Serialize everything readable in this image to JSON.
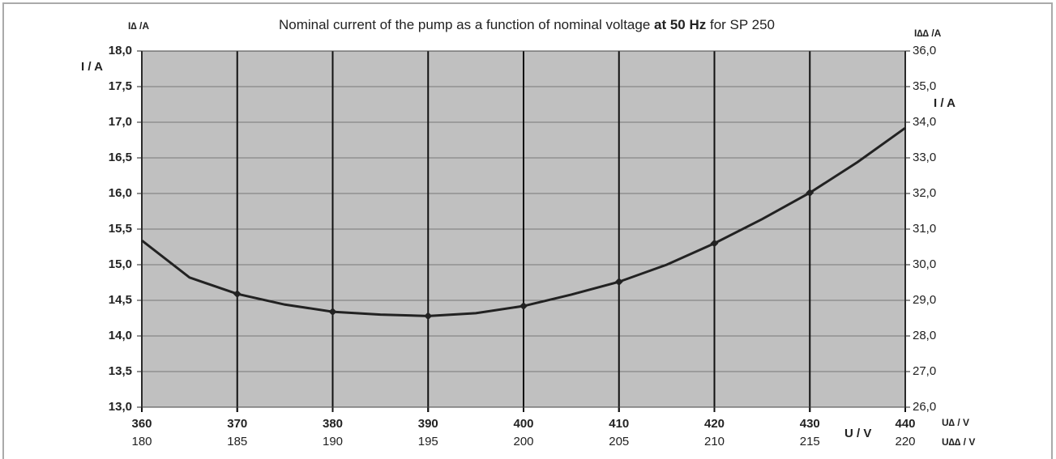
{
  "chart_data": {
    "type": "line",
    "title_parts": [
      "Nominal current of the pump as a function of nominal voltage ",
      "at 50 Hz",
      " for SP 250"
    ],
    "y_label_top": "I∆ /A",
    "y_label": "I / A",
    "y2_label_top": "I∆∆ /A",
    "y2_label": "I / A",
    "x_label": "U / V",
    "x_label_right": "U∆ / V",
    "x2_label_right": "U∆∆ / V",
    "x": [
      360,
      365,
      370,
      375,
      380,
      385,
      390,
      395,
      400,
      405,
      410,
      415,
      420,
      425,
      430,
      435,
      440
    ],
    "series": [
      {
        "color": "#222222",
        "values": [
          15.34,
          14.82,
          14.59,
          14.44,
          14.34,
          14.3,
          14.28,
          14.32,
          14.42,
          14.58,
          14.76,
          15.0,
          15.3,
          15.64,
          16.01,
          16.44,
          16.92
        ]
      }
    ],
    "xlim": [
      360,
      440
    ],
    "xticks": [
      360,
      370,
      380,
      390,
      400,
      410,
      420,
      430,
      440
    ],
    "x2lim": [
      180,
      220
    ],
    "x2ticks": [
      180,
      185,
      190,
      195,
      200,
      205,
      210,
      215,
      220
    ],
    "ylim": [
      13,
      18
    ],
    "yticks": [
      {
        "value": 13,
        "label": "13,0"
      },
      {
        "value": 13.5,
        "label": "13,5"
      },
      {
        "value": 14,
        "label": "14,0"
      },
      {
        "value": 14.5,
        "label": "14,5"
      },
      {
        "value": 15,
        "label": "15,0"
      },
      {
        "value": 15.5,
        "label": "15,5"
      },
      {
        "value": 16,
        "label": "16,0"
      },
      {
        "value": 16.5,
        "label": "16,5"
      },
      {
        "value": 17,
        "label": "17,0"
      },
      {
        "value": 17.5,
        "label": "17,5"
      },
      {
        "value": 18,
        "label": "18,0"
      }
    ],
    "y2lim": [
      26,
      36
    ],
    "y2ticks": [
      {
        "value": 26,
        "label": "26,0"
      },
      {
        "value": 27,
        "label": "27,0"
      },
      {
        "value": 28,
        "label": "28,0"
      },
      {
        "value": 29,
        "label": "29,0"
      },
      {
        "value": 30,
        "label": "30,0"
      },
      {
        "value": 31,
        "label": "31,0"
      },
      {
        "value": 32,
        "label": "32,0"
      },
      {
        "value": 33,
        "label": "33,0"
      },
      {
        "value": 34,
        "label": "34,0"
      },
      {
        "value": 35,
        "label": "35,0"
      },
      {
        "value": 36,
        "label": "36,0"
      }
    ],
    "grid": true,
    "background": "#c0c0c0"
  }
}
